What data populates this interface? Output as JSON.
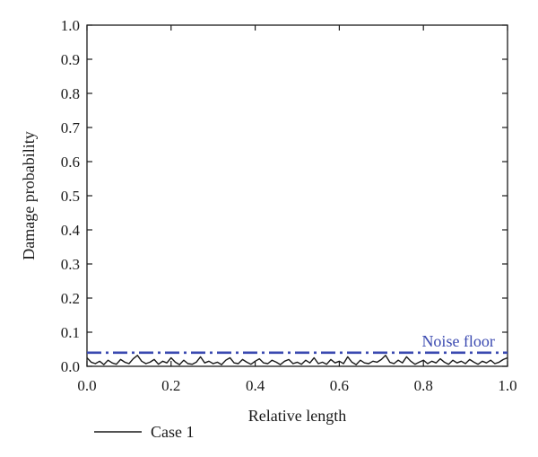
{
  "chart_data": {
    "type": "line",
    "xlabel": "Relative length",
    "ylabel": "Damage probability",
    "xlim": [
      0.0,
      1.0
    ],
    "ylim": [
      0.0,
      1.0
    ],
    "x_ticks": [
      "0.0",
      "0.2",
      "0.4",
      "0.6",
      "0.8",
      "1.0"
    ],
    "y_ticks": [
      "0.0",
      "0.1",
      "0.2",
      "0.3",
      "0.4",
      "0.5",
      "0.6",
      "0.7",
      "0.8",
      "0.9",
      "1.0"
    ],
    "grid": false,
    "legend_position": "bottom-left",
    "series": [
      {
        "name": "Case 1",
        "color": "#1a1a1a",
        "x": [
          0.0,
          0.01,
          0.02,
          0.03,
          0.04,
          0.05,
          0.06,
          0.07,
          0.08,
          0.09,
          0.1,
          0.11,
          0.12,
          0.13,
          0.14,
          0.15,
          0.16,
          0.17,
          0.18,
          0.19,
          0.2,
          0.21,
          0.22,
          0.23,
          0.24,
          0.25,
          0.26,
          0.27,
          0.28,
          0.29,
          0.3,
          0.31,
          0.32,
          0.33,
          0.34,
          0.35,
          0.36,
          0.37,
          0.38,
          0.39,
          0.4,
          0.41,
          0.42,
          0.43,
          0.44,
          0.45,
          0.46,
          0.47,
          0.48,
          0.49,
          0.5,
          0.51,
          0.52,
          0.53,
          0.54,
          0.55,
          0.56,
          0.57,
          0.58,
          0.59,
          0.6,
          0.61,
          0.62,
          0.63,
          0.64,
          0.65,
          0.66,
          0.67,
          0.68,
          0.69,
          0.7,
          0.71,
          0.72,
          0.73,
          0.74,
          0.75,
          0.76,
          0.77,
          0.78,
          0.79,
          0.8,
          0.81,
          0.82,
          0.83,
          0.84,
          0.85,
          0.86,
          0.87,
          0.88,
          0.89,
          0.9,
          0.91,
          0.92,
          0.93,
          0.94,
          0.95,
          0.96,
          0.97,
          0.98,
          0.99,
          1.0
        ],
        "values": [
          0.025,
          0.012,
          0.008,
          0.015,
          0.005,
          0.018,
          0.01,
          0.006,
          0.02,
          0.012,
          0.008,
          0.022,
          0.032,
          0.015,
          0.008,
          0.012,
          0.02,
          0.006,
          0.015,
          0.01,
          0.025,
          0.012,
          0.005,
          0.018,
          0.008,
          0.006,
          0.012,
          0.028,
          0.01,
          0.015,
          0.008,
          0.012,
          0.005,
          0.018,
          0.025,
          0.01,
          0.008,
          0.02,
          0.012,
          0.006,
          0.015,
          0.022,
          0.01,
          0.008,
          0.018,
          0.012,
          0.005,
          0.015,
          0.02,
          0.008,
          0.012,
          0.006,
          0.018,
          0.01,
          0.025,
          0.008,
          0.012,
          0.006,
          0.02,
          0.01,
          0.015,
          0.008,
          0.028,
          0.012,
          0.005,
          0.018,
          0.01,
          0.008,
          0.015,
          0.012,
          0.02,
          0.032,
          0.012,
          0.008,
          0.018,
          0.01,
          0.028,
          0.015,
          0.006,
          0.012,
          0.018,
          0.008,
          0.015,
          0.01,
          0.022,
          0.012,
          0.006,
          0.018,
          0.01,
          0.015,
          0.008,
          0.02,
          0.012,
          0.006,
          0.015,
          0.01,
          0.018,
          0.008,
          0.012,
          0.02,
          0.025
        ]
      },
      {
        "name": "Noise floor",
        "color": "#3a49b0",
        "x": [
          0.0,
          1.0
        ],
        "values": [
          0.04,
          0.04
        ]
      }
    ],
    "annotations": [
      {
        "text": "Noise floor",
        "x": 0.97,
        "y": 0.04
      }
    ]
  }
}
